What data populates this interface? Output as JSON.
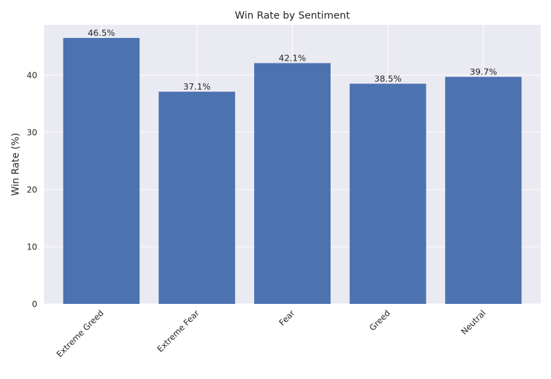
{
  "chart_data": {
    "type": "bar",
    "title": "Win Rate by Sentiment",
    "xlabel": "",
    "ylabel": "Win Rate (%)",
    "categories": [
      "Extreme Greed",
      "Extreme Fear",
      "Fear",
      "Greed",
      "Neutral"
    ],
    "values": [
      46.5,
      37.1,
      42.1,
      38.5,
      39.7
    ],
    "data_labels": [
      "46.5%",
      "37.1%",
      "42.1%",
      "38.5%",
      "39.7%"
    ],
    "yticks": [
      0,
      10,
      20,
      30,
      40
    ],
    "ylim": [
      0,
      48.8
    ],
    "grid": true,
    "colors": {
      "bar": "#4c72b0",
      "plot_background": "#eaeaf2",
      "grid": "#ffffff",
      "text": "#262626"
    }
  }
}
